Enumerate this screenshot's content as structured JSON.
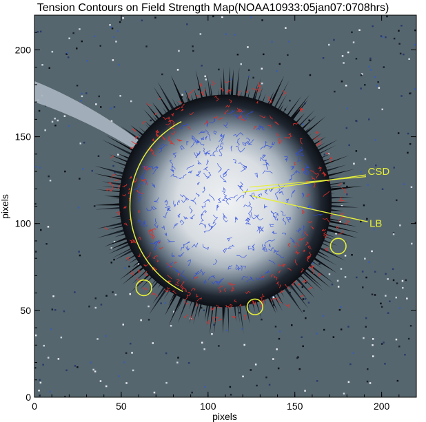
{
  "chart_data": {
    "type": "heatmap",
    "title": "Tension Contours on Field Strength Map(NOAA10933:05jan07:0708hrs)",
    "xlabel": "pixels",
    "ylabel": "pixels",
    "xlim": [
      0,
      220
    ],
    "ylim": [
      0,
      220
    ],
    "xticks": [
      0,
      50,
      100,
      150,
      200
    ],
    "yticks": [
      0,
      50,
      100,
      150,
      200
    ],
    "colormap": "grayscale field strength with blue and red tension contours",
    "annotations": [
      {
        "label": "CSD",
        "x": 192,
        "y": 130
      },
      {
        "label": "LB",
        "x": 195,
        "y": 100
      }
    ],
    "circles": [
      {
        "x": 63,
        "y": 63,
        "r": 4.5
      },
      {
        "x": 127,
        "y": 52,
        "r": 4.5
      },
      {
        "x": 175,
        "y": 87,
        "r": 4.5
      }
    ],
    "arc": {
      "center": [
        110,
        110
      ],
      "radius": 55
    }
  },
  "colors": {
    "background_field": "#56666e",
    "umbra": "#e6e9ec",
    "contour_blue": "#2d4be0",
    "contour_red": "#e0302a",
    "annotation": "#e6ef3a"
  }
}
